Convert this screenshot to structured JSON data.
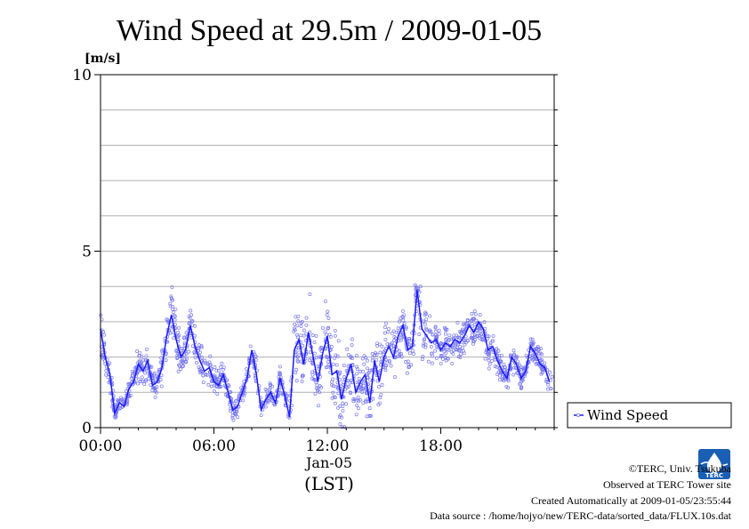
{
  "chart_data": {
    "type": "scatter",
    "title": "Wind Speed at 29.5m / 2009-01-05",
    "ylabel": "[m/s]",
    "ylim": [
      0,
      10
    ],
    "yticks": [
      0,
      5,
      10
    ],
    "xlim_hours": [
      0,
      24
    ],
    "x_ticks": [
      "00:00",
      "06:00",
      "12:00",
      "18:00"
    ],
    "x_date_label": "Jan-05",
    "x_timezone_label": "(LST)",
    "grid": true,
    "legend_position": "right",
    "series": [
      {
        "name": "Wind Speed",
        "color": "#1a1aff",
        "scatter_color": "#7777ee",
        "hours": [
          0.0,
          0.25,
          0.5,
          0.75,
          1.0,
          1.25,
          1.5,
          1.75,
          2.0,
          2.25,
          2.5,
          2.75,
          3.0,
          3.25,
          3.5,
          3.75,
          4.0,
          4.25,
          4.5,
          4.75,
          5.0,
          5.25,
          5.5,
          5.75,
          6.0,
          6.25,
          6.5,
          6.75,
          7.0,
          7.25,
          7.5,
          7.75,
          8.0,
          8.25,
          8.5,
          8.75,
          9.0,
          9.25,
          9.5,
          9.75,
          10.0,
          10.25,
          10.5,
          10.75,
          11.0,
          11.25,
          11.5,
          11.75,
          12.0,
          12.25,
          12.5,
          12.75,
          13.0,
          13.25,
          13.5,
          13.75,
          14.0,
          14.25,
          14.5,
          14.75,
          15.0,
          15.25,
          15.5,
          15.75,
          16.0,
          16.25,
          16.5,
          16.75,
          17.0,
          17.25,
          17.5,
          17.75,
          18.0,
          18.25,
          18.5,
          18.75,
          19.0,
          19.25,
          19.5,
          19.75,
          20.0,
          20.25,
          20.5,
          20.75,
          21.0,
          21.25,
          21.5,
          21.75,
          22.0,
          22.25,
          22.5,
          22.75,
          23.0,
          23.25,
          23.5,
          23.75
        ],
        "values": [
          2.8,
          2.0,
          1.5,
          0.4,
          0.7,
          0.6,
          1.1,
          1.3,
          1.8,
          1.6,
          1.9,
          1.2,
          1.3,
          1.7,
          2.6,
          3.2,
          2.5,
          2.0,
          2.2,
          2.9,
          2.3,
          1.9,
          1.6,
          1.7,
          1.3,
          1.2,
          1.5,
          1.0,
          0.5,
          0.6,
          1.0,
          1.4,
          2.2,
          1.5,
          0.5,
          0.8,
          1.0,
          0.7,
          1.4,
          0.9,
          0.3,
          2.2,
          2.5,
          1.8,
          2.7,
          2.0,
          1.3,
          2.1,
          2.6,
          1.5,
          1.6,
          0.8,
          1.4,
          1.8,
          1.0,
          1.3,
          1.5,
          0.7,
          1.9,
          1.3,
          2.0,
          2.3,
          2.0,
          2.6,
          2.9,
          2.2,
          2.3,
          3.9,
          2.8,
          2.6,
          2.4,
          2.5,
          2.2,
          2.4,
          2.3,
          2.5,
          2.4,
          2.6,
          2.9,
          2.7,
          3.0,
          2.8,
          2.2,
          2.3,
          1.9,
          1.6,
          1.4,
          2.0,
          1.8,
          1.4,
          1.6,
          2.3,
          2.1,
          1.8,
          1.7,
          1.3
        ],
        "scatter_spread": [
          0.8,
          0.6,
          0.5,
          0.3,
          0.3,
          0.3,
          0.4,
          0.4,
          0.5,
          0.4,
          0.5,
          0.4,
          0.4,
          0.5,
          0.8,
          0.9,
          0.7,
          0.6,
          0.6,
          0.7,
          0.6,
          0.5,
          0.5,
          0.4,
          0.4,
          0.4,
          0.4,
          0.3,
          0.3,
          0.3,
          0.3,
          0.4,
          0.5,
          0.4,
          0.3,
          0.3,
          0.3,
          0.3,
          0.4,
          0.3,
          0.3,
          0.9,
          1.1,
          1.0,
          1.1,
          1.0,
          0.9,
          1.0,
          1.1,
          1.0,
          1.0,
          0.9,
          1.0,
          1.0,
          0.9,
          0.9,
          0.9,
          0.8,
          1.0,
          0.9,
          0.8,
          0.8,
          0.8,
          0.8,
          0.9,
          0.8,
          0.8,
          1.0,
          0.8,
          0.7,
          0.6,
          0.6,
          0.5,
          0.5,
          0.5,
          0.5,
          0.5,
          0.5,
          0.5,
          0.5,
          0.5,
          0.5,
          0.5,
          0.5,
          0.4,
          0.4,
          0.4,
          0.4,
          0.4,
          0.4,
          0.4,
          0.4,
          0.4,
          0.4,
          0.4,
          0.4
        ]
      }
    ]
  },
  "footer": {
    "copyright": "©TERC, Univ. Tsukuba",
    "observed": "Observed at TERC Tower site",
    "created": "Created Automatically at 2009-01-05/23:55:44",
    "source": "Data source : /home/hojyo/new/TERC-data/sorted_data/FLUX.10s.dat"
  },
  "logo": {
    "text": "TERC",
    "color": "#1a5fb4"
  }
}
